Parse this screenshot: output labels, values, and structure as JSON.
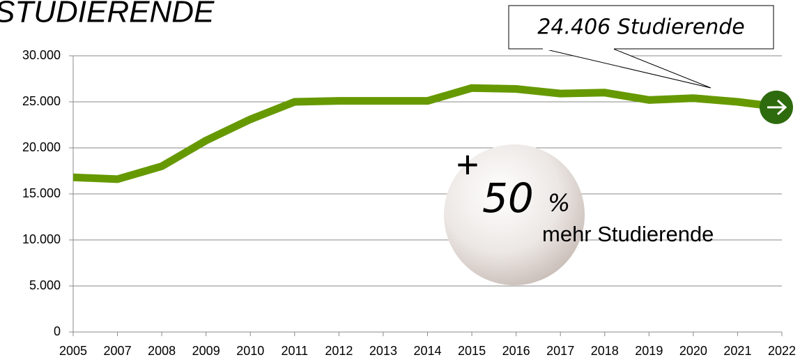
{
  "chart_data": {
    "type": "line",
    "title": "STUDIERENDE",
    "categories": [
      "2005",
      "2007",
      "2008",
      "2009",
      "2010",
      "2011",
      "2012",
      "2013",
      "2014",
      "2015",
      "2016",
      "2017",
      "2018",
      "2019",
      "2020",
      "2021",
      "2022"
    ],
    "series": [
      {
        "name": "Studierende",
        "color": "#669900",
        "values": [
          16800,
          16600,
          18000,
          20800,
          23100,
          25000,
          25100,
          25100,
          25100,
          26500,
          26400,
          25900,
          26000,
          25200,
          25400,
          25000,
          24406
        ]
      }
    ],
    "ylim": [
      0,
      30000
    ],
    "yticks": [
      0,
      {
        "value": 5000,
        "label": "5.000"
      },
      {
        "value": 10000,
        "label": "10.000"
      },
      {
        "value": 15000,
        "label": "15.000"
      },
      {
        "value": 20000,
        "label": "20.000"
      },
      {
        "value": 25000,
        "label": "25.000"
      },
      {
        "value": 30000,
        "label": "30.000"
      }
    ],
    "grid": true,
    "annotations": [
      "24.406 Studierende",
      "+",
      "50",
      "%",
      "mehr Studierende"
    ]
  }
}
